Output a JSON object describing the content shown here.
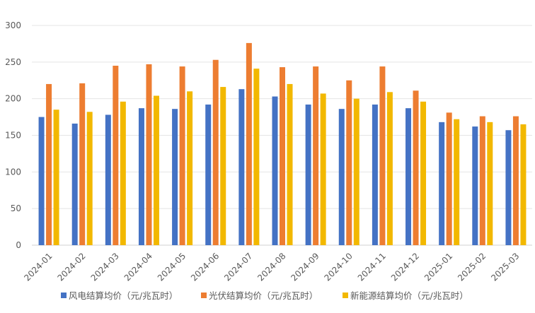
{
  "chart_data": {
    "type": "bar",
    "title": "",
    "xlabel": "",
    "ylabel": "",
    "ylim": [
      0,
      300
    ],
    "yticks": [
      0,
      50,
      100,
      150,
      200,
      250,
      300
    ],
    "grid": true,
    "legend_position": "bottom",
    "categories": [
      "2024-01",
      "2024-02",
      "2024-03",
      "2024-04",
      "2024-05",
      "2024-06",
      "2024-07",
      "2024-08",
      "2024-09",
      "2024-10",
      "2024-11",
      "2024-12",
      "2025-01",
      "2025-02",
      "2025-03"
    ],
    "series": [
      {
        "name": "风电结算均价（元/兆瓦时）",
        "color": "#4472c4",
        "values": [
          175,
          166,
          178,
          187,
          186,
          192,
          213,
          203,
          192,
          186,
          192,
          187,
          168,
          162,
          157
        ]
      },
      {
        "name": "光伏结算均价（元/兆瓦时）",
        "color": "#ed7d31",
        "values": [
          220,
          221,
          245,
          247,
          244,
          253,
          276,
          243,
          244,
          225,
          244,
          211,
          181,
          176,
          176
        ]
      },
      {
        "name": "新能源结算均价（元/兆瓦时）",
        "color": "#f2b800",
        "values": [
          185,
          182,
          196,
          204,
          210,
          216,
          241,
          220,
          207,
          200,
          209,
          196,
          172,
          168,
          165
        ]
      }
    ]
  }
}
